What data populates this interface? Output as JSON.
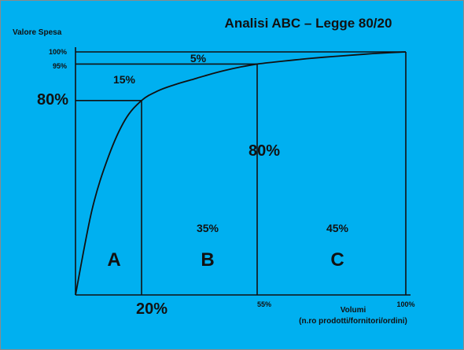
{
  "chart_data": {
    "type": "line",
    "title": "Analisi ABC – Legge 80/20",
    "ylabel": "Valore Spesa",
    "xlabel": "Volumi",
    "xlabel_sub": "(n.ro prodotti/fornitori/ordini)",
    "xlim": [
      0,
      100
    ],
    "ylim": [
      0,
      100
    ],
    "x": [
      0,
      5,
      10,
      15,
      20,
      25,
      30,
      35,
      40,
      45,
      50,
      55,
      60,
      65,
      70,
      75,
      80,
      85,
      90,
      95,
      100
    ],
    "y": [
      0,
      35,
      57,
      72,
      80,
      84,
      86.5,
      88.5,
      90.5,
      92.3,
      93.8,
      95,
      95.8,
      96.5,
      97.2,
      97.8,
      98.3,
      98.8,
      99.3,
      99.7,
      100
    ],
    "tick_labels": {
      "y100": "100%",
      "y95": "95%",
      "y80": "80%",
      "x20": "20%",
      "x55": "55%",
      "x100": "100%"
    },
    "annotations": {
      "seg_c_value": "5%",
      "seg_b_value": "15%",
      "mid_value": "80%",
      "class_b_volume": "35%",
      "class_c_volume": "45%",
      "class_a": "A",
      "class_b": "B",
      "class_c": "C"
    }
  }
}
